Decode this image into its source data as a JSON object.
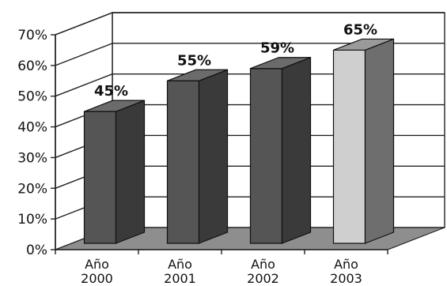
{
  "chart_data": {
    "type": "bar",
    "categories": [
      "Año 2000",
      "Año 2001",
      "Año 2002",
      "Año 2003"
    ],
    "category_lines": [
      [
        "Año",
        "2000"
      ],
      [
        "Año",
        "2001"
      ],
      [
        "Año",
        "2002"
      ],
      [
        "Año",
        "2003"
      ]
    ],
    "values": [
      45,
      55,
      59,
      65
    ],
    "data_labels": [
      "45%",
      "55%",
      "59%",
      "65%"
    ],
    "ylim": [
      0,
      70
    ],
    "yticks": [
      0,
      10,
      20,
      30,
      40,
      50,
      60,
      70
    ],
    "ytick_labels": [
      "0%",
      "10%",
      "20%",
      "30%",
      "40%",
      "50%",
      "60%",
      "70%"
    ],
    "title": "",
    "xlabel": "",
    "ylabel": "",
    "grid": true,
    "style": "3d",
    "colors": {
      "bar_front": "#555555",
      "bar_side": "#3a3a3a",
      "bar_top": "#6b6b6b",
      "highlight_front": "#cfcfcf",
      "highlight_side": "#6e6e6e",
      "highlight_top": "#9a9a9a",
      "floor": "#8e8e8e",
      "grid": "#222222"
    },
    "highlight_index": 3
  }
}
